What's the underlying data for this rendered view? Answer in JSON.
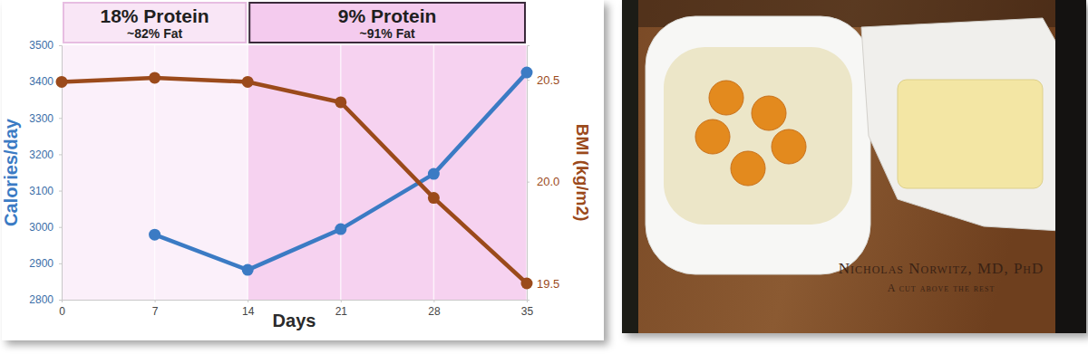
{
  "chart_data": {
    "type": "line",
    "x": [
      0,
      7,
      14,
      21,
      28,
      35
    ],
    "xlim": [
      0,
      35
    ],
    "xticks": [
      0,
      7,
      14,
      21,
      28,
      35
    ],
    "ylim": [
      2800,
      3500
    ],
    "yticks": [
      2800,
      2900,
      3000,
      3100,
      3200,
      3300,
      3400,
      3500
    ],
    "y2lim": [
      19.42,
      20.67
    ],
    "y2ticks": [
      19.5,
      {
        "value": 20,
        "label": "20.0"
      },
      20.5
    ],
    "x_label": "Days",
    "y_label": "Calories/day",
    "y2_label": "BMI (kg/m2)",
    "grid": true,
    "series": [
      {
        "name": "Calories/day",
        "color": "#3b7bc4",
        "marker": "circle",
        "line_style": "solid",
        "values": [
          null,
          2979,
          2882,
          2994,
          3146,
          3425
        ]
      },
      {
        "name": "BMI (kg/m2)",
        "color": "#9b4a1b",
        "marker": "circle",
        "line_style": "solid",
        "axis": "y2",
        "values": [
          20.49,
          20.51,
          20.49,
          20.39,
          19.92,
          19.5
        ]
      }
    ],
    "annotations": [
      {
        "text": "18% Protein",
        "subtext": "~82% Fat",
        "x_start": 0,
        "x_end": 14
      },
      {
        "text": "9% Protein",
        "subtext": "~91% Fat",
        "x_start": 14,
        "x_end": 35
      }
    ]
  },
  "photo": {
    "engraving": [
      "Nicholas Norwitz, MD, PhD",
      "A cut above the rest"
    ]
  }
}
